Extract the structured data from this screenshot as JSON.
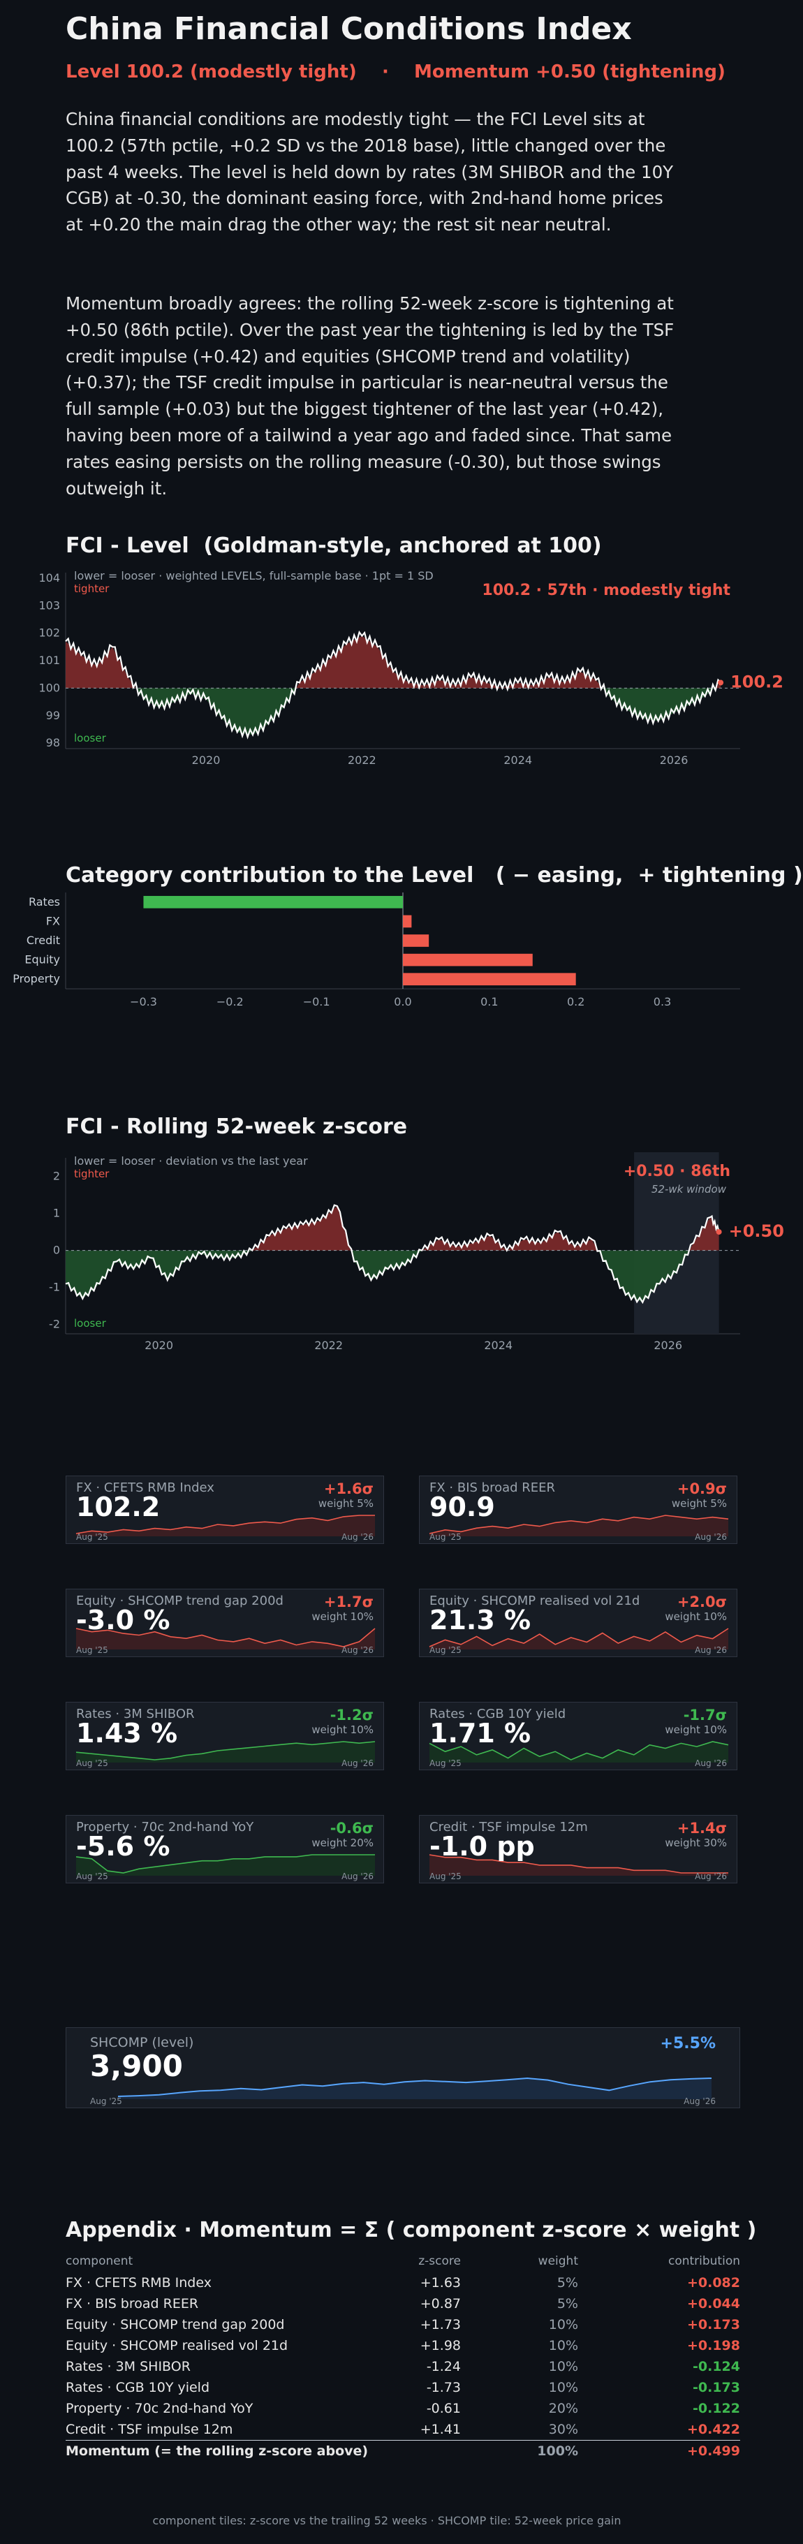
{
  "header": {
    "title": "China Financial Conditions Index",
    "level_tag": "Level 100.2 (modestly tight)",
    "separator": "·",
    "momentum_tag": "Momentum +0.50 (tightening)"
  },
  "paragraphs": [
    "China financial conditions are modestly tight — the FCI Level sits at 100.2 (57th pctile, +0.2 SD vs the 2018 base), little changed over the past 4 weeks. The level is held down by rates (3M SHIBOR and the 10Y CGB) at -0.30, the dominant easing force, with 2nd-hand home prices at +0.20 the main drag the other way; the rest sit near neutral.",
    "Momentum broadly agrees: the rolling 52-week z-score is tightening at +0.50 (86th pctile). Over the past year the tightening is led by the TSF credit impulse (+0.42) and equities (SHCOMP trend and volatility) (+0.37); the TSF credit impulse in particular is near-neutral versus the full sample (+0.03) but the biggest tightener of the last year (+0.42), having been more of a tailwind a year ago and faded since. That same rates easing persists on the rolling measure (-0.30), but those swings outweigh it."
  ],
  "colors": {
    "tight": "#f05a4c",
    "loose": "#3fb950",
    "line": "#ffffff",
    "shcomp": "#58a6ff"
  },
  "level_chart": {
    "title": "FCI - Level  (Goldman-style, anchored at 100)",
    "note": "lower = looser · weighted LEVELS, full-sample base · 1pt = 1 SD",
    "tighter": "tighter",
    "looser": "looser",
    "callout": "100.2 · 57th · modestly tight",
    "end_label": "100.2"
  },
  "zscore_chart": {
    "title": "FCI - Rolling 52-week z-score",
    "note": "lower = looser · deviation vs the last year",
    "tighter": "tighter",
    "looser": "looser",
    "callout": "+0.50 · 86th",
    "window_label": "52-wk window",
    "end_label": "+0.50"
  },
  "contrib_chart": {
    "title": "Category contribution to the Level   ( − easing,  + tightening )"
  },
  "chart_data": [
    {
      "type": "line",
      "name": "fci-level",
      "x_range": [
        2018.2,
        2026.85
      ],
      "ylim": [
        97.8,
        104.2
      ],
      "yticks": [
        98,
        99,
        100,
        101,
        102,
        103,
        104
      ],
      "xticks": [
        "2020",
        "2022",
        "2024",
        "2026"
      ],
      "xtick_values": [
        2020,
        2022,
        2024,
        2026
      ],
      "baseline": 100,
      "x": [
        2018.2,
        2018.4,
        2018.6,
        2018.8,
        2019.0,
        2019.2,
        2019.4,
        2019.6,
        2019.8,
        2020.0,
        2020.2,
        2020.4,
        2020.6,
        2020.8,
        2021.0,
        2021.2,
        2021.4,
        2021.6,
        2021.8,
        2022.0,
        2022.2,
        2022.4,
        2022.6,
        2022.8,
        2023.0,
        2023.2,
        2023.4,
        2023.6,
        2023.8,
        2024.0,
        2024.2,
        2024.4,
        2024.6,
        2024.8,
        2025.0,
        2025.2,
        2025.4,
        2025.6,
        2025.8,
        2026.0,
        2026.2,
        2026.4,
        2026.6
      ],
      "y": [
        101.7,
        101.2,
        100.8,
        101.5,
        100.4,
        99.6,
        99.3,
        99.5,
        99.8,
        99.6,
        98.9,
        98.4,
        98.3,
        98.7,
        99.3,
        100.2,
        100.6,
        101.1,
        101.6,
        101.9,
        101.5,
        100.6,
        100.2,
        100.1,
        100.3,
        100.1,
        100.4,
        100.2,
        100.0,
        100.2,
        100.1,
        100.4,
        100.2,
        100.6,
        100.3,
        99.6,
        99.2,
        98.9,
        98.8,
        99.1,
        99.4,
        99.7,
        100.2
      ]
    },
    {
      "type": "bar",
      "name": "category-contribution",
      "orientation": "horizontal",
      "categories": [
        "Rates",
        "FX",
        "Credit",
        "Equity",
        "Property"
      ],
      "values": [
        -0.3,
        0.01,
        0.03,
        0.15,
        0.2
      ],
      "xlim": [
        -0.39,
        0.39
      ],
      "xticks": [
        "−0.3",
        "−0.2",
        "−0.1",
        "0.0",
        "0.1",
        "0.2",
        "0.3"
      ],
      "xtick_values": [
        -0.3,
        -0.2,
        -0.1,
        0.0,
        0.1,
        0.2,
        0.3
      ]
    },
    {
      "type": "line",
      "name": "fci-zscore",
      "x_range": [
        2018.9,
        2026.85
      ],
      "ylim": [
        -2.25,
        2.5
      ],
      "yticks": [
        -2,
        -1,
        0,
        1,
        2
      ],
      "xticks": [
        "2020",
        "2022",
        "2024",
        "2026"
      ],
      "xtick_values": [
        2020,
        2022,
        2024,
        2026
      ],
      "baseline": 0,
      "window": [
        2025.6,
        2026.6
      ],
      "x": [
        2018.9,
        2019.1,
        2019.3,
        2019.5,
        2019.7,
        2019.9,
        2020.1,
        2020.3,
        2020.5,
        2020.7,
        2020.9,
        2021.1,
        2021.3,
        2021.5,
        2021.7,
        2021.9,
        2022.1,
        2022.3,
        2022.5,
        2022.7,
        2022.9,
        2023.1,
        2023.3,
        2023.5,
        2023.7,
        2023.9,
        2024.1,
        2024.3,
        2024.5,
        2024.7,
        2024.9,
        2025.1,
        2025.3,
        2025.5,
        2025.7,
        2025.9,
        2026.1,
        2026.3,
        2026.5,
        2026.6
      ],
      "y": [
        -0.9,
        -1.3,
        -0.9,
        -0.3,
        -0.5,
        -0.2,
        -0.8,
        -0.3,
        -0.1,
        -0.2,
        -0.2,
        0.0,
        0.4,
        0.6,
        0.7,
        0.8,
        1.2,
        -0.3,
        -0.8,
        -0.5,
        -0.4,
        0.0,
        0.3,
        0.1,
        0.2,
        0.4,
        0.0,
        0.3,
        0.2,
        0.5,
        0.1,
        0.3,
        -0.5,
        -1.2,
        -1.4,
        -0.9,
        -0.6,
        0.2,
        0.9,
        0.5
      ]
    },
    {
      "type": "line",
      "name": "component-sparklines",
      "series": [
        {
          "label": "FX · CFETS RMB Index",
          "values": [
            0.2,
            0.4,
            0.3,
            0.5,
            0.4,
            0.6,
            0.5,
            0.7,
            0.6,
            0.9,
            0.8,
            1.0,
            1.1,
            1.0,
            1.3,
            1.4,
            1.2,
            1.5,
            1.6,
            1.6
          ]
        },
        {
          "label": "FX · BIS broad REER",
          "values": [
            0.1,
            0.3,
            0.2,
            0.4,
            0.5,
            0.4,
            0.6,
            0.5,
            0.7,
            0.8,
            0.7,
            0.9,
            0.8,
            1.0,
            0.9,
            1.1,
            1.0,
            0.9,
            1.0,
            0.9
          ]
        },
        {
          "label": "Equity · SHCOMP trend gap 200d",
          "values": [
            1.7,
            1.5,
            1.6,
            1.4,
            1.3,
            1.5,
            1.2,
            1.1,
            1.3,
            1.0,
            0.9,
            1.1,
            0.8,
            1.0,
            0.7,
            0.9,
            0.8,
            0.6,
            0.9,
            1.7
          ]
        },
        {
          "label": "Equity · SHCOMP realised vol 21d",
          "values": [
            0.4,
            1.0,
            0.6,
            1.3,
            0.5,
            1.1,
            0.7,
            1.5,
            0.6,
            1.2,
            0.8,
            1.6,
            0.7,
            1.3,
            0.9,
            1.7,
            0.8,
            1.4,
            1.1,
            2.0
          ]
        },
        {
          "label": "Rates · 3M SHIBOR",
          "values": [
            -0.8,
            -0.9,
            -1.0,
            -1.1,
            -1.2,
            -1.3,
            -1.2,
            -1.0,
            -0.9,
            -0.7,
            -0.6,
            -0.5,
            -0.4,
            -0.3,
            -0.2,
            -0.3,
            -0.2,
            -0.1,
            -0.2,
            -0.1
          ]
        },
        {
          "label": "Rates · CGB 10Y yield",
          "values": [
            -0.3,
            -0.8,
            -0.5,
            -1.0,
            -0.7,
            -1.2,
            -0.6,
            -1.1,
            -0.8,
            -1.3,
            -0.9,
            -1.2,
            -0.7,
            -1.0,
            -0.4,
            -0.6,
            -0.3,
            -0.5,
            -0.2,
            -0.4
          ]
        },
        {
          "label": "Property · 70c 2nd-hand YoY",
          "values": [
            -0.2,
            -0.3,
            -0.9,
            -1.0,
            -0.8,
            -0.7,
            -0.6,
            -0.5,
            -0.4,
            -0.4,
            -0.3,
            -0.3,
            -0.2,
            -0.2,
            -0.2,
            -0.1,
            -0.1,
            -0.1,
            -0.1,
            -0.1
          ]
        },
        {
          "label": "Credit · TSF impulse 12m",
          "values": [
            1.0,
            0.9,
            0.9,
            0.8,
            0.8,
            0.7,
            0.7,
            0.6,
            0.6,
            0.6,
            0.5,
            0.5,
            0.5,
            0.4,
            0.4,
            0.4,
            0.3,
            0.3,
            0.3,
            0.3
          ]
        },
        {
          "label": "SHCOMP (level)",
          "values": [
            3300,
            3320,
            3350,
            3420,
            3480,
            3500,
            3560,
            3520,
            3600,
            3680,
            3640,
            3720,
            3760,
            3700,
            3780,
            3820,
            3790,
            3760,
            3800,
            3850,
            3900,
            3840,
            3700,
            3600,
            3500,
            3650,
            3780,
            3850,
            3880,
            3900
          ]
        }
      ]
    }
  ],
  "tiles": [
    {
      "label": "FX · CFETS RMB Index",
      "value": "102.2",
      "sigma": "+1.6σ",
      "weight": "weight 5%",
      "sign": "tight",
      "d0": "Aug '25",
      "d1": "Aug '26"
    },
    {
      "label": "FX · BIS broad REER",
      "value": "90.9",
      "sigma": "+0.9σ",
      "weight": "weight 5%",
      "sign": "tight",
      "d0": "Aug '25",
      "d1": "Aug '26"
    },
    {
      "label": "Equity · SHCOMP trend gap 200d",
      "value": "-3.0 %",
      "sigma": "+1.7σ",
      "weight": "weight 10%",
      "sign": "tight",
      "d0": "Aug '25",
      "d1": "Aug '26"
    },
    {
      "label": "Equity · SHCOMP realised vol 21d",
      "value": "21.3 %",
      "sigma": "+2.0σ",
      "weight": "weight 10%",
      "sign": "tight",
      "d0": "Aug '25",
      "d1": "Aug '26"
    },
    {
      "label": "Rates · 3M SHIBOR",
      "value": "1.43 %",
      "sigma": "-1.2σ",
      "weight": "weight 10%",
      "sign": "loose",
      "d0": "Aug '25",
      "d1": "Aug '26"
    },
    {
      "label": "Rates · CGB 10Y yield",
      "value": "1.71 %",
      "sigma": "-1.7σ",
      "weight": "weight 10%",
      "sign": "loose",
      "d0": "Aug '25",
      "d1": "Aug '26"
    },
    {
      "label": "Property · 70c 2nd-hand YoY",
      "value": "-5.6 %",
      "sigma": "-0.6σ",
      "weight": "weight 20%",
      "sign": "loose",
      "d0": "Aug '25",
      "d1": "Aug '26"
    },
    {
      "label": "Credit · TSF impulse 12m",
      "value": "-1.0 pp",
      "sigma": "+1.4σ",
      "weight": "weight 30%",
      "sign": "tight",
      "d0": "Aug '25",
      "d1": "Aug '26"
    }
  ],
  "shcomp_tile": {
    "label": "SHCOMP (level)",
    "value": "3,900",
    "change": "+5.5%",
    "d0": "Aug '25",
    "d1": "Aug '26"
  },
  "appendix": {
    "title": "Appendix · Momentum = Σ ( component z-score × weight )",
    "headers": [
      "component",
      "z-score",
      "weight",
      "contribution"
    ],
    "rows": [
      {
        "component": "FX · CFETS RMB Index",
        "z": "+1.63",
        "w": "5%",
        "c": "+0.082",
        "sign": "tight"
      },
      {
        "component": "FX · BIS broad REER",
        "z": "+0.87",
        "w": "5%",
        "c": "+0.044",
        "sign": "tight"
      },
      {
        "component": "Equity · SHCOMP trend gap 200d",
        "z": "+1.73",
        "w": "10%",
        "c": "+0.173",
        "sign": "tight"
      },
      {
        "component": "Equity · SHCOMP realised vol 21d",
        "z": "+1.98",
        "w": "10%",
        "c": "+0.198",
        "sign": "tight"
      },
      {
        "component": "Rates · 3M SHIBOR",
        "z": "-1.24",
        "w": "10%",
        "c": "-0.124",
        "sign": "loose"
      },
      {
        "component": "Rates · CGB 10Y yield",
        "z": "-1.73",
        "w": "10%",
        "c": "-0.173",
        "sign": "loose"
      },
      {
        "component": "Property · 70c 2nd-hand YoY",
        "z": "-0.61",
        "w": "20%",
        "c": "-0.122",
        "sign": "loose"
      },
      {
        "component": "Credit · TSF impulse 12m",
        "z": "+1.41",
        "w": "30%",
        "c": "+0.422",
        "sign": "tight"
      }
    ],
    "total": {
      "component": "Momentum  (= the rolling z-score above)",
      "w": "100%",
      "c": "+0.499"
    }
  },
  "footer": "component tiles: z-score vs the trailing 52 weeks  ·  SHCOMP tile: 52-week price gain"
}
